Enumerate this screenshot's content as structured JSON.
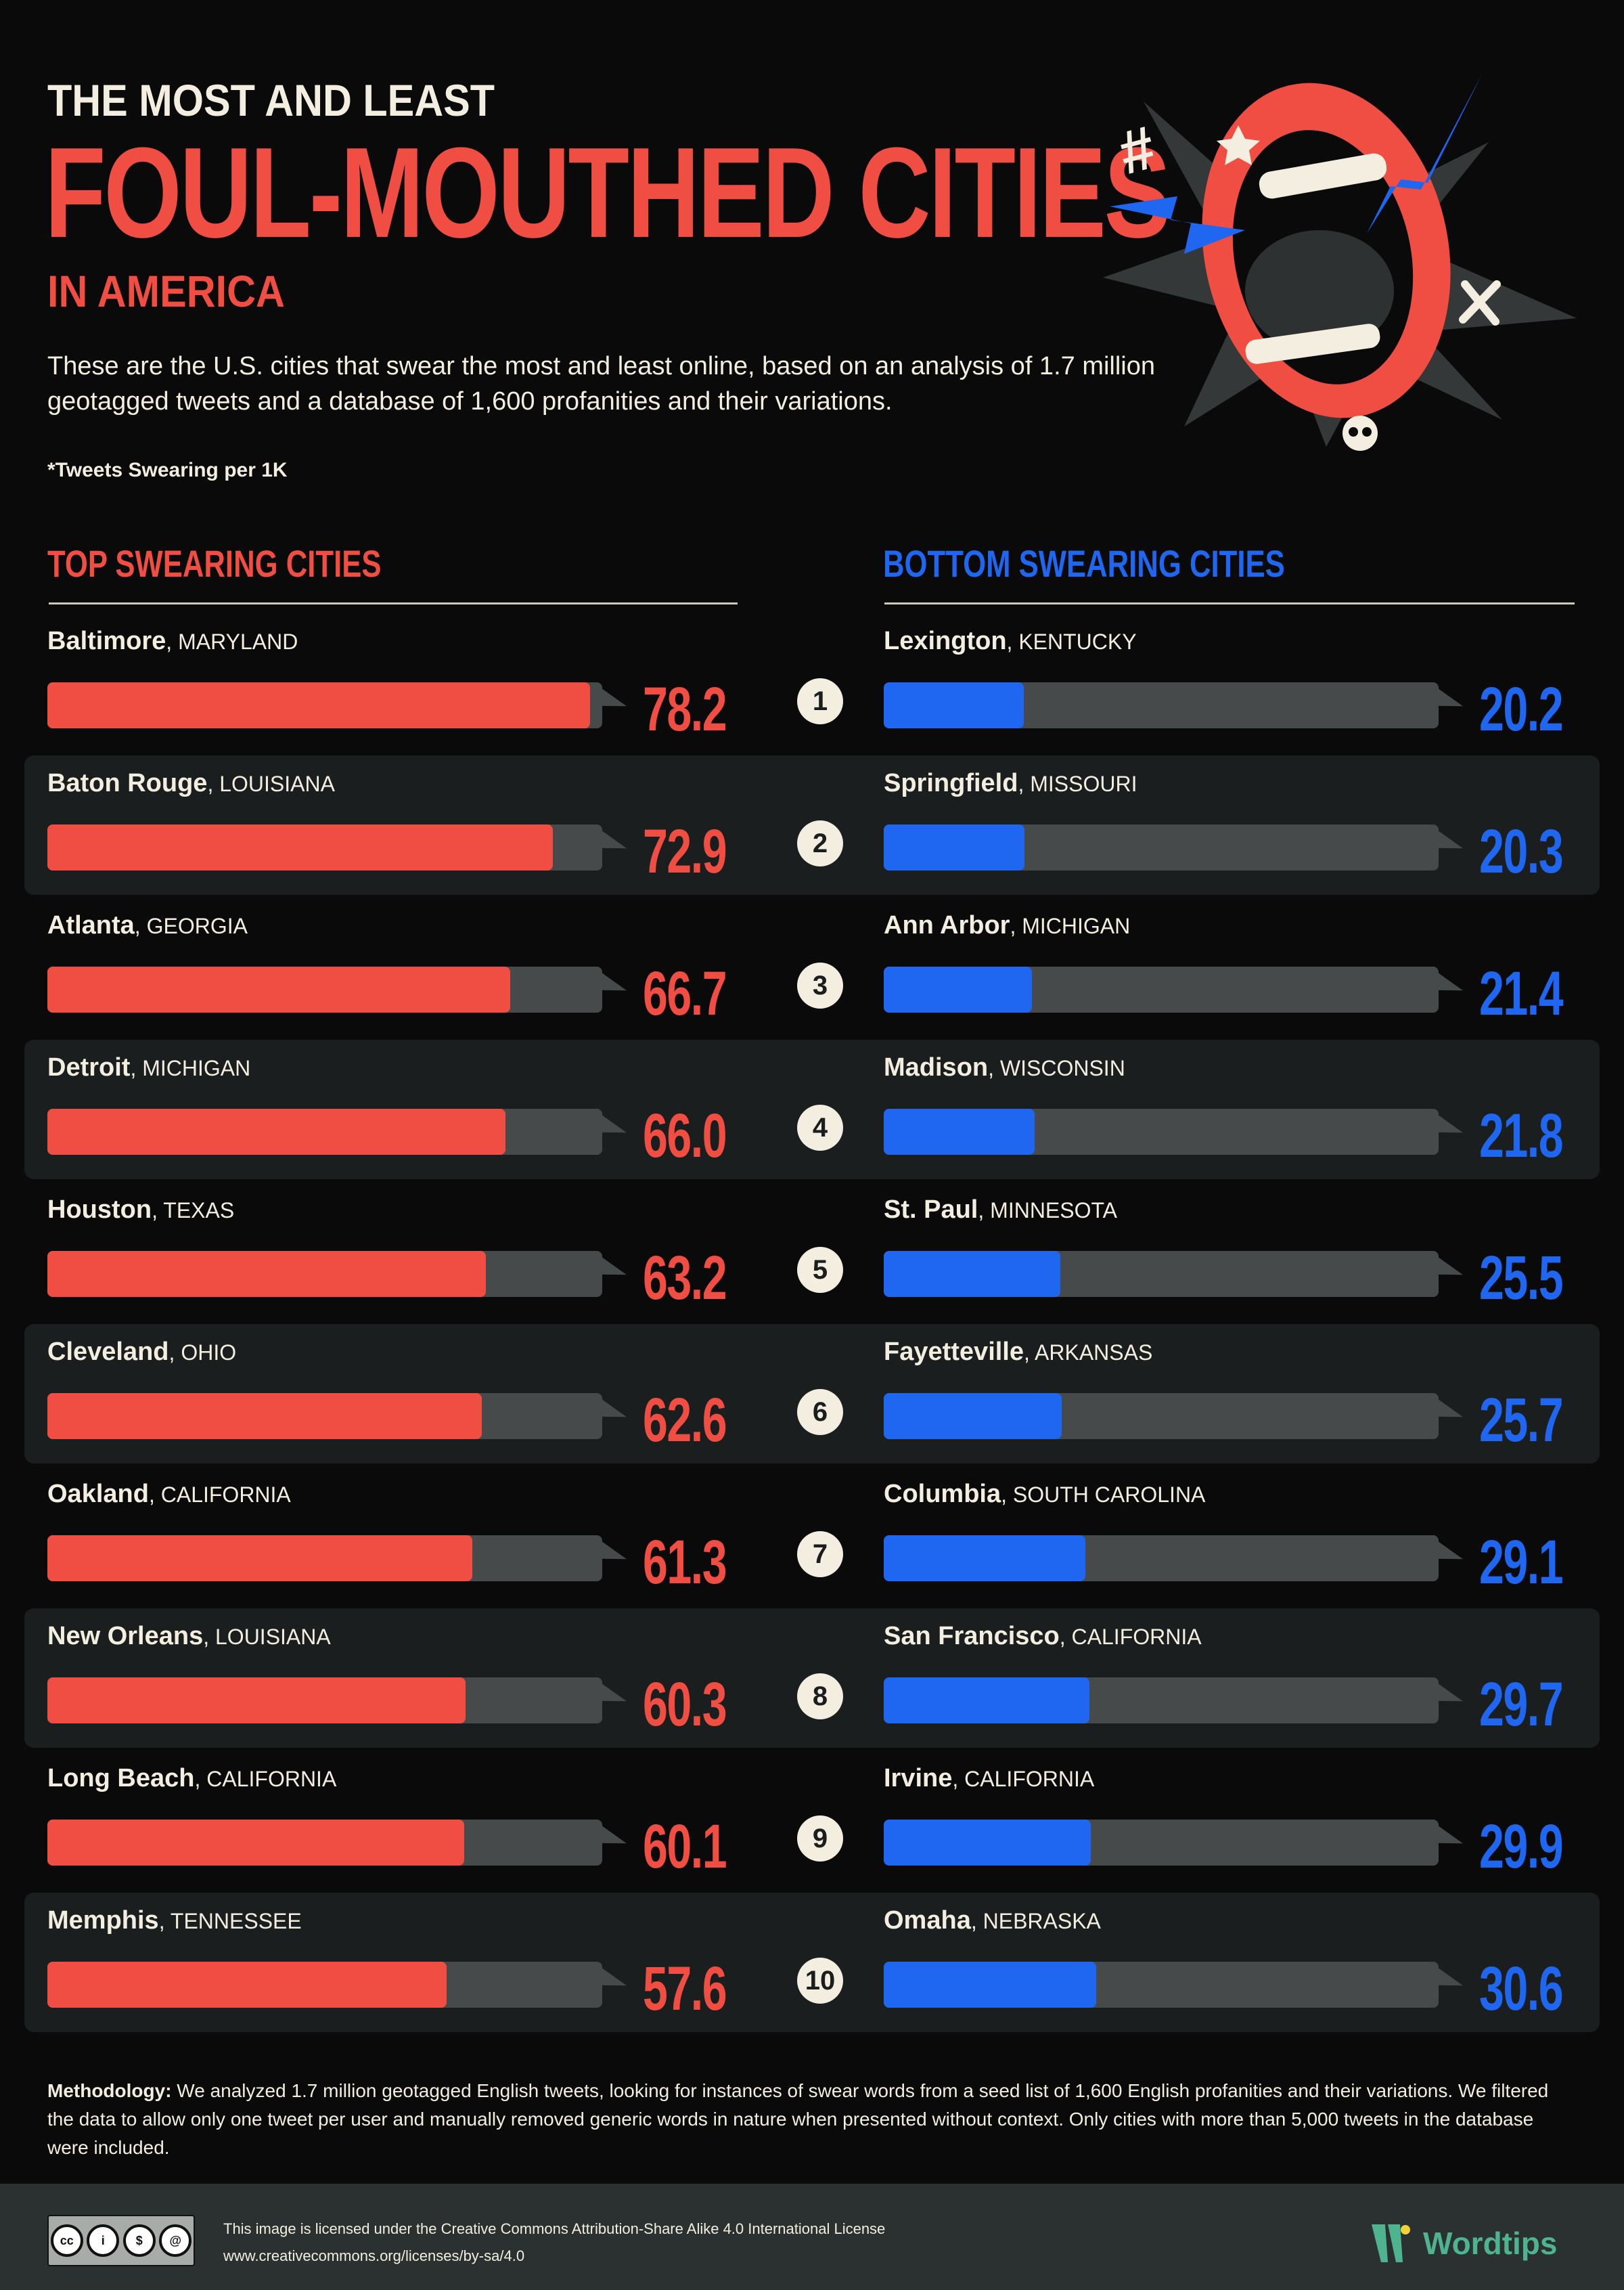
{
  "header": {
    "pre_title": "THE MOST AND LEAST",
    "main_title": "FOUL-MOUTHED CITIES",
    "sub_title": "IN AMERICA",
    "intro": "These are the U.S. cities that swear the most and least online, based on an analysis of 1.7 million geotagged tweets and a database of 1,600 profanities and their variations.",
    "note": "*Tweets Swearing per 1K"
  },
  "illustration": {
    "icons": [
      "mouth-icon",
      "lightning-bolt-icon",
      "hash-icon",
      "star-icon",
      "crossbones-icon",
      "skull-icon"
    ]
  },
  "columns": {
    "left_heading": "TOP SWEARING CITIES",
    "right_heading": "BOTTOM SWEARING CITIES"
  },
  "colors": {
    "top_accent": "#f04e43",
    "bottom_accent": "#1f66f0",
    "track": "#474a4b",
    "background": "#0a0a0a",
    "row_shade": "#1b1e1f",
    "text": "#f3eedf",
    "brand": "#4eb38f"
  },
  "rows": [
    {
      "rank": "1",
      "top": {
        "city": "Baltimore",
        "state": ", MARYLAND",
        "value": "78.2"
      },
      "bottom": {
        "city": "Lexington",
        "state": ", KENTUCKY",
        "value": "20.2"
      }
    },
    {
      "rank": "2",
      "top": {
        "city": "Baton Rouge",
        "state": ", LOUISIANA",
        "value": "72.9"
      },
      "bottom": {
        "city": "Springfield",
        "state": ", MISSOURI",
        "value": "20.3"
      }
    },
    {
      "rank": "3",
      "top": {
        "city": "Atlanta",
        "state": ", GEORGIA",
        "value": "66.7"
      },
      "bottom": {
        "city": "Ann Arbor",
        "state": ", MICHIGAN",
        "value": "21.4"
      }
    },
    {
      "rank": "4",
      "top": {
        "city": "Detroit",
        "state": ", MICHIGAN",
        "value": "66.0"
      },
      "bottom": {
        "city": "Madison",
        "state": ", WISCONSIN",
        "value": "21.8"
      }
    },
    {
      "rank": "5",
      "top": {
        "city": "Houston",
        "state": ", TEXAS",
        "value": "63.2"
      },
      "bottom": {
        "city": "St. Paul",
        "state": ", MINNESOTA",
        "value": "25.5"
      }
    },
    {
      "rank": "6",
      "top": {
        "city": "Cleveland",
        "state": ", OHIO",
        "value": "62.6"
      },
      "bottom": {
        "city": "Fayetteville",
        "state": ", ARKANSAS",
        "value": "25.7"
      }
    },
    {
      "rank": "7",
      "top": {
        "city": "Oakland",
        "state": ", CALIFORNIA",
        "value": "61.3"
      },
      "bottom": {
        "city": "Columbia",
        "state": ", SOUTH CAROLINA",
        "value": "29.1"
      }
    },
    {
      "rank": "8",
      "top": {
        "city": "New Orleans",
        "state": ", LOUISIANA",
        "value": "60.3"
      },
      "bottom": {
        "city": "San Francisco",
        "state": ", CALIFORNIA",
        "value": "29.7"
      }
    },
    {
      "rank": "9",
      "top": {
        "city": "Long Beach",
        "state": ", CALIFORNIA",
        "value": "60.1"
      },
      "bottom": {
        "city": "Irvine",
        "state": ", CALIFORNIA",
        "value": "29.9"
      }
    },
    {
      "rank": "10",
      "top": {
        "city": "Memphis",
        "state": ", TENNESSEE",
        "value": "57.6"
      },
      "bottom": {
        "city": "Omaha",
        "state": ", NEBRASKA",
        "value": "30.6"
      }
    }
  ],
  "methodology": {
    "label": "Methodology:",
    "text": " We analyzed 1.7 million geotagged English tweets, looking for instances of swear words from a seed list of 1,600 English profanities and their variations. We filtered the data to allow only one tweet per user and manually removed generic words in nature when presented without context. Only cities with more than 5,000 tweets in the database were included."
  },
  "footer": {
    "cc_labels": [
      "BY",
      "NC",
      "SA"
    ],
    "license_line_1": "This image is licensed under the Creative Commons Attribution-Share Alike 4.0 International License",
    "license_line_2": "www.creativecommons.org/licenses/by-sa/4.0",
    "brand_name": "Wordtips"
  },
  "chart_data": [
    {
      "type": "bar",
      "orientation": "horizontal",
      "title": "TOP SWEARING CITIES",
      "unit": "Tweets Swearing per 1K",
      "categories": [
        "Baltimore, MARYLAND",
        "Baton Rouge, LOUISIANA",
        "Atlanta, GEORGIA",
        "Detroit, MICHIGAN",
        "Houston, TEXAS",
        "Cleveland, OHIO",
        "Oakland, CALIFORNIA",
        "New Orleans, LOUISIANA",
        "Long Beach, CALIFORNIA",
        "Memphis, TENNESSEE"
      ],
      "values": [
        78.2,
        72.9,
        66.7,
        66.0,
        63.2,
        62.6,
        61.3,
        60.3,
        60.1,
        57.6
      ],
      "color": "#f04e43",
      "xlim": [
        0,
        80
      ],
      "grid": false,
      "legend": "none"
    },
    {
      "type": "bar",
      "orientation": "horizontal",
      "title": "BOTTOM SWEARING CITIES",
      "unit": "Tweets Swearing per 1K",
      "categories": [
        "Lexington, KENTUCKY",
        "Springfield, MISSOURI",
        "Ann Arbor, MICHIGAN",
        "Madison, WISCONSIN",
        "St. Paul, MINNESOTA",
        "Fayetteville, ARKANSAS",
        "Columbia, SOUTH CAROLINA",
        "San Francisco, CALIFORNIA",
        "Irvine, CALIFORNIA",
        "Omaha, NEBRASKA"
      ],
      "values": [
        20.2,
        20.3,
        21.4,
        21.8,
        25.5,
        25.7,
        29.1,
        29.7,
        29.9,
        30.6
      ],
      "color": "#1f66f0",
      "xlim": [
        0,
        80
      ],
      "grid": false,
      "legend": "none"
    }
  ]
}
